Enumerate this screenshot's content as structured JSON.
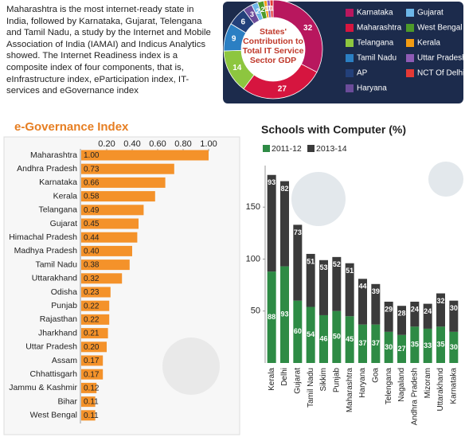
{
  "intro": "Maharashtra is the most internet-ready state in India, followed by Karnataka, Gujarat, Telengana and Tamil Nadu, a study by the Internet and Mobile Association of India (IAMAI) and Indicus Analytics showed. The Internet Readiness index is a composite index of four components, that is, eInfrastructure index, eParticipation index, IT-services and eGovernance index",
  "chart_data": [
    {
      "type": "donut",
      "title": "States' Contribution to Total IT Service Sector GDP",
      "categories": [
        "Karnataka",
        "Maharashtra",
        "Telangana",
        "Tamil Nadu",
        "AP",
        "Haryana",
        "Gujarat",
        "West Bengal",
        "Kerala",
        "Uttar Pradesh",
        "NCT Of Delhi"
      ],
      "values": [
        32,
        27,
        14,
        9,
        6,
        3,
        2,
        2,
        1,
        1,
        1
      ],
      "colors": [
        "#b8175e",
        "#d6153f",
        "#8dc63f",
        "#2b7fc3",
        "#23407a",
        "#6b4c9a",
        "#6db6e8",
        "#4d9a2a",
        "#f39c12",
        "#8e5bb5",
        "#e53935"
      ]
    },
    {
      "type": "bar",
      "orientation": "horizontal",
      "title": "e-Governance Index",
      "categories": [
        "Maharashtra",
        "Andhra Pradesh",
        "Karnataka",
        "Kerala",
        "Telangana",
        "Gujarat",
        "Himachal Pradesh",
        "Madhya Pradesh",
        "Tamil Nadu",
        "Uttarakhand",
        "Odisha",
        "Punjab",
        "Rajasthan",
        "Jharkhand",
        "Uttar Pradesh",
        "Assam",
        "Chhattisgarh",
        "Jammu & Kashmir",
        "Bihar",
        "West Bengal"
      ],
      "values": [
        1.0,
        0.73,
        0.66,
        0.58,
        0.49,
        0.45,
        0.44,
        0.4,
        0.38,
        0.32,
        0.23,
        0.22,
        0.22,
        0.21,
        0.2,
        0.17,
        0.17,
        0.12,
        0.11,
        0.11
      ],
      "value_labels": [
        "1.00",
        "0.73",
        "0.66",
        "0.58",
        "0.49",
        "0.45",
        "0.44",
        "0.40",
        "0.38",
        "0.32",
        "0.23",
        "0.22",
        "0.22",
        "0.21",
        "0.20",
        "0.17",
        "0.17",
        "0.12",
        "0.11",
        "0.11"
      ],
      "color": "#f4922a",
      "xlim": [
        0,
        1.04
      ],
      "xticks": [
        {
          "value": 0.2,
          "label": "0.20"
        },
        {
          "value": 0.4,
          "label": "0.40"
        },
        {
          "value": 0.6,
          "label": "0.60"
        },
        {
          "value": 0.8,
          "label": "0.80"
        },
        {
          "value": 1.0,
          "label": "1.00"
        }
      ]
    },
    {
      "type": "bar",
      "stacked": true,
      "title": "Schools with Computer (%)",
      "categories": [
        "Kerala",
        "Delhi",
        "Gujarat",
        "Tamil Nadu",
        "Sikkim",
        "Punjab",
        "Maharashtra",
        "Haryana",
        "Goa",
        "Telengana",
        "Nagaland",
        "Andhra Pradesh",
        "Mizoram",
        "Uttarakhand",
        "Karnataka"
      ],
      "series": [
        {
          "name": "2011-12",
          "color": "#2e8b45",
          "values": [
            88,
            93,
            60,
            54,
            46,
            50,
            45,
            37,
            37,
            30,
            27,
            35,
            33,
            35,
            30
          ]
        },
        {
          "name": "2013-14",
          "color": "#3b3b3b",
          "values": [
            93,
            82,
            73,
            51,
            53,
            52,
            51,
            44,
            39,
            29,
            28,
            24,
            24,
            32,
            30
          ]
        }
      ],
      "ylim": [
        0,
        190
      ],
      "yticks": [
        50,
        100,
        150
      ]
    }
  ]
}
